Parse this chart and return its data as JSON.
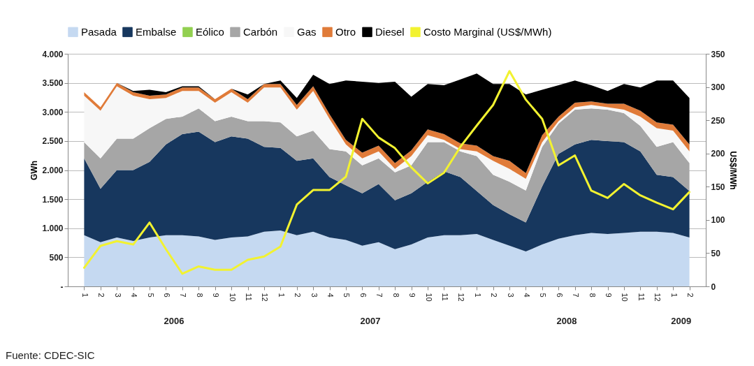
{
  "chart_data": {
    "type": "area",
    "stacked": true,
    "legend": "top",
    "grid": "y",
    "ylabel": "GWh",
    "y2label": "US$/MWh",
    "categories": [
      "1",
      "2",
      "3",
      "4",
      "5",
      "6",
      "7",
      "8",
      "9",
      "10",
      "11",
      "12",
      "1",
      "2",
      "3",
      "4",
      "5",
      "6",
      "7",
      "8",
      "9",
      "10",
      "11",
      "12",
      "1",
      "2",
      "3",
      "4",
      "5",
      "6",
      "7",
      "8",
      "9",
      "10",
      "11",
      "12",
      "1",
      "2"
    ],
    "ylim": [
      0,
      4000
    ],
    "yticks": [
      {
        "value": 0,
        "label": "-"
      },
      500,
      {
        "value": 1000,
        "label": "1.000"
      },
      {
        "value": 1500,
        "label": "1.500"
      },
      {
        "value": 2000,
        "label": "2.000"
      },
      {
        "value": 2500,
        "label": "2.500"
      },
      {
        "value": 3000,
        "label": "3.000"
      },
      {
        "value": 3500,
        "label": "3.500"
      },
      {
        "value": 4000,
        "label": "4.000"
      }
    ],
    "y2lim": [
      0,
      350
    ],
    "y2ticks": [
      0,
      50,
      100,
      150,
      200,
      250,
      300,
      350
    ],
    "series": [
      {
        "name": "Pasada",
        "color": "#c5d9f1",
        "values": [
          880,
          760,
          840,
          780,
          840,
          880,
          880,
          860,
          800,
          840,
          860,
          940,
          960,
          880,
          940,
          840,
          800,
          700,
          760,
          640,
          720,
          840,
          880,
          880,
          900,
          800,
          700,
          600,
          720,
          820,
          880,
          920,
          900,
          920,
          940,
          940,
          920,
          840
        ]
      },
      {
        "name": "Embalse",
        "color": "#17375e",
        "values": [
          1320,
          920,
          1160,
          1220,
          1300,
          1560,
          1740,
          1800,
          1680,
          1740,
          1680,
          1460,
          1420,
          1280,
          1260,
          1040,
          940,
          900,
          1000,
          840,
          880,
          960,
          1100,
          1000,
          740,
          600,
          540,
          500,
          1000,
          1460,
          1560,
          1600,
          1600,
          1560,
          1380,
          980,
          960,
          800
        ]
      },
      {
        "name": "Eólico",
        "color": "#92d050",
        "values": [
          null,
          null,
          null,
          null,
          null,
          null,
          null,
          null,
          null,
          null,
          null,
          null,
          null,
          null,
          null,
          null,
          null,
          null,
          null,
          null,
          null,
          null,
          null,
          null,
          null,
          null,
          null,
          null,
          null,
          null,
          null,
          null,
          null,
          null,
          null,
          null,
          null,
          null
        ]
      },
      {
        "name": "Carbón",
        "color": "#a6a6a6",
        "values": [
          280,
          520,
          540,
          540,
          580,
          440,
          300,
          400,
          360,
          340,
          300,
          440,
          440,
          420,
          480,
          480,
          580,
          480,
          440,
          480,
          480,
          680,
          500,
          440,
          600,
          520,
          560,
          550,
          680,
          520,
          600,
          540,
          540,
          500,
          440,
          480,
          600,
          480
        ]
      },
      {
        "name": "Gas",
        "color": "#f7f7f7",
        "values": [
          800,
          820,
          900,
          740,
          500,
          360,
          440,
          300,
          320,
          420,
          320,
          580,
          600,
          460,
          680,
          520,
          120,
          120,
          120,
          60,
          160,
          120,
          40,
          40,
          80,
          240,
          220,
          200,
          80,
          40,
          40,
          60,
          40,
          60,
          160,
          320,
          200,
          200
        ]
      },
      {
        "name": "Otro",
        "color": "#e07b39",
        "values": [
          60,
          60,
          60,
          60,
          60,
          60,
          60,
          60,
          60,
          60,
          60,
          60,
          60,
          80,
          80,
          80,
          80,
          100,
          100,
          100,
          100,
          100,
          100,
          100,
          100,
          80,
          140,
          100,
          120,
          80,
          80,
          60,
          60,
          100,
          100,
          100,
          100,
          120
        ]
      },
      {
        "name": "Diesel",
        "color": "#000000",
        "values": [
          0,
          0,
          0,
          20,
          100,
          40,
          20,
          20,
          0,
          0,
          80,
          0,
          60,
          120,
          200,
          520,
          1020,
          1220,
          1080,
          1400,
          920,
          780,
          840,
          1100,
          1240,
          1240,
          1320,
          1350,
          780,
          540,
          380,
          280,
          220,
          340,
          400,
          720,
          760,
          800
        ]
      },
      {
        "name": "Costo Marginal (US$/MWh)",
        "type": "line",
        "axis": "y2",
        "color": "#f2f230",
        "values": [
          28,
          61,
          68,
          63,
          96,
          56,
          19,
          30,
          25,
          25,
          40,
          45,
          60,
          123,
          145,
          145,
          165,
          252,
          224,
          208,
          179,
          155,
          171,
          210,
          242,
          273,
          324,
          281,
          252,
          182,
          197,
          144,
          133,
          154,
          137,
          126,
          116,
          142
        ]
      }
    ],
    "annotations": [
      "2006",
      "2007",
      "2008",
      "2009",
      "Fuente: CDEC-SIC"
    ]
  }
}
